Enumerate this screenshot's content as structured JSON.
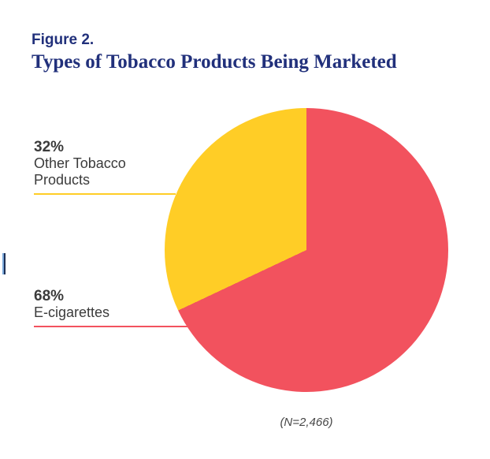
{
  "figure": {
    "kicker": "Figure 2.",
    "title": "Types of Tobacco Products Being Marketed",
    "caption": "(N=2,466)"
  },
  "colors": {
    "background": "#FFFFFF",
    "title_navy": "#21307B",
    "label_dark": "#3B3B3B",
    "caption_gray": "#474747",
    "ecig_red": "#F2525E",
    "other_yellow": "#FFCD26"
  },
  "chart_data": {
    "type": "pie",
    "title": "Types of Tobacco Products Being Marketed",
    "start_angle_deg": 0,
    "direction": "clockwise",
    "sample_size_note": "(N=2,466)",
    "legend_position": "left-callouts",
    "slices": [
      {
        "label": "E-cigarettes",
        "value": 68,
        "percent_label": "68%",
        "color": "#F2525E"
      },
      {
        "label": "Other Tobacco Products",
        "value": 32,
        "percent_label": "32%",
        "color": "#FFCD26"
      }
    ]
  }
}
